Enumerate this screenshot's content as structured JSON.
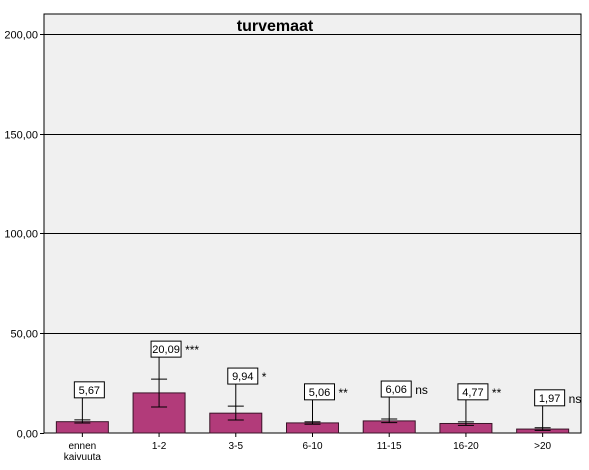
{
  "chart_data": {
    "type": "bar",
    "title": "turvemaat",
    "xlabel": "",
    "ylabel": "",
    "ylim": [
      0,
      210
    ],
    "yticks": [
      "0,00",
      "50,00",
      "100,00",
      "150,00",
      "200,00"
    ],
    "ytick_values": [
      0,
      50,
      100,
      150,
      200
    ],
    "categories": [
      [
        "ennen",
        "kaivuuta"
      ],
      [
        "1-2"
      ],
      [
        "3-5"
      ],
      [
        "6-10"
      ],
      [
        "11-15"
      ],
      [
        "16-20"
      ],
      [
        ">20"
      ]
    ],
    "values": [
      5.67,
      20.09,
      9.94,
      5.06,
      6.06,
      4.77,
      1.97
    ],
    "value_labels": [
      "5,67",
      "20,09",
      "9,94",
      "5,06",
      "6,06",
      "4,77",
      "1,97"
    ],
    "error_low": [
      5.0,
      13.0,
      6.5,
      4.4,
      5.2,
      3.8,
      1.3
    ],
    "error_high": [
      6.6,
      27.0,
      13.5,
      5.6,
      7.0,
      5.6,
      2.6
    ],
    "significance": [
      "",
      "***",
      "*",
      "**",
      "ns",
      "**",
      "ns"
    ],
    "grid": true,
    "colors": {
      "bar": "#b23b7a",
      "bar_stroke": "#3a1428",
      "plot_bg": "#f0f0f0",
      "grid": "#000000"
    }
  }
}
